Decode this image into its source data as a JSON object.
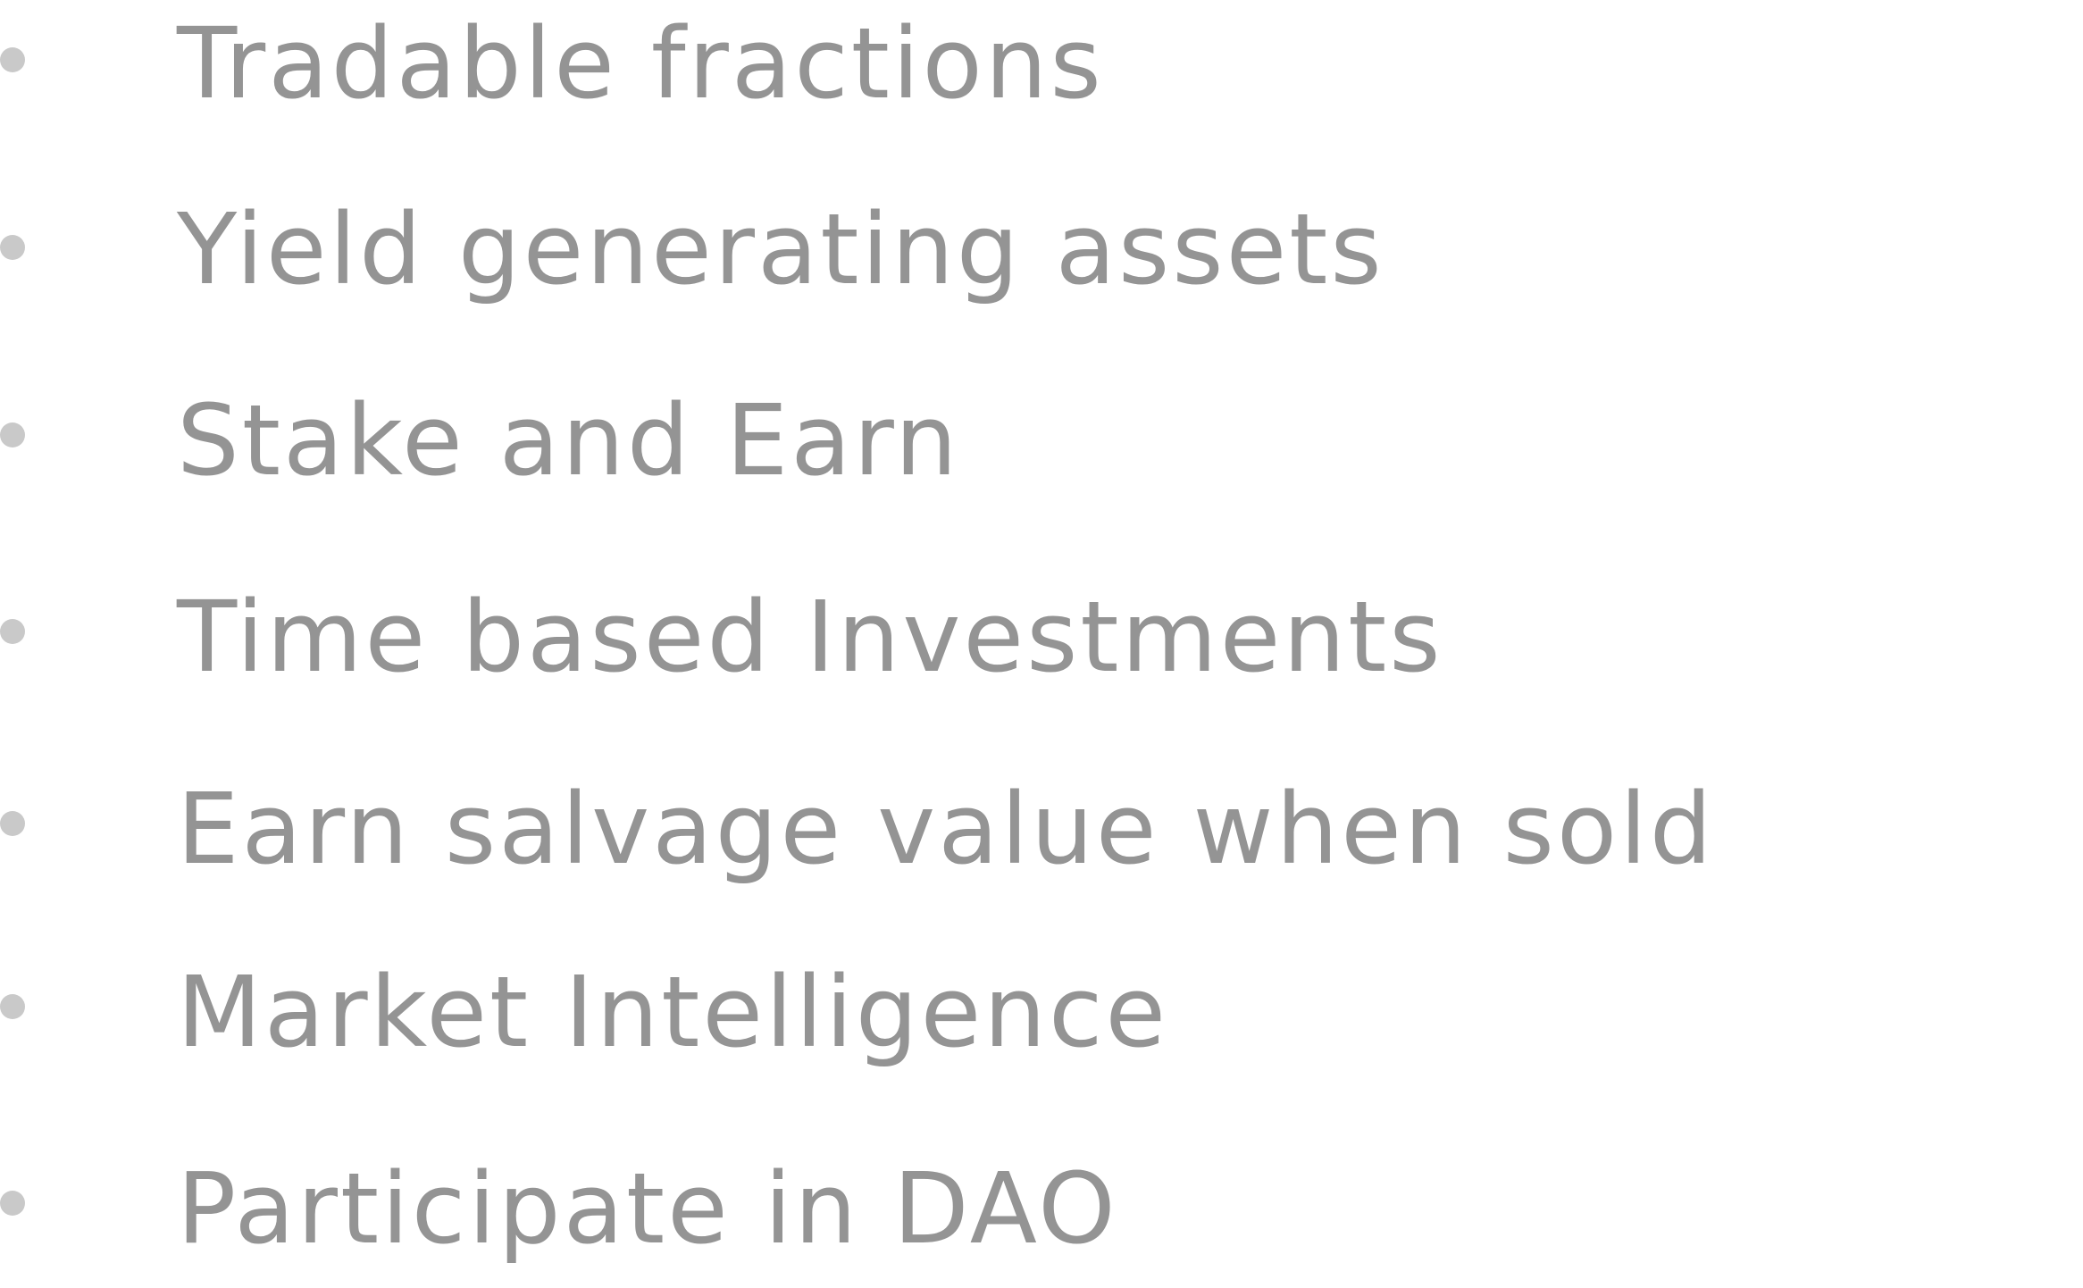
{
  "features": {
    "items": [
      {
        "label": "Tradable fractions"
      },
      {
        "label": "Yield generating assets"
      },
      {
        "label": "Stake and Earn"
      },
      {
        "label": "Time based Investments"
      },
      {
        "label": "Earn salvage value when sold"
      },
      {
        "label": "Market Intelligence"
      },
      {
        "label": "Participate in DAO"
      }
    ]
  },
  "colors": {
    "text": "#949494",
    "bullet": "#c9c9c9",
    "background": "#ffffff"
  }
}
